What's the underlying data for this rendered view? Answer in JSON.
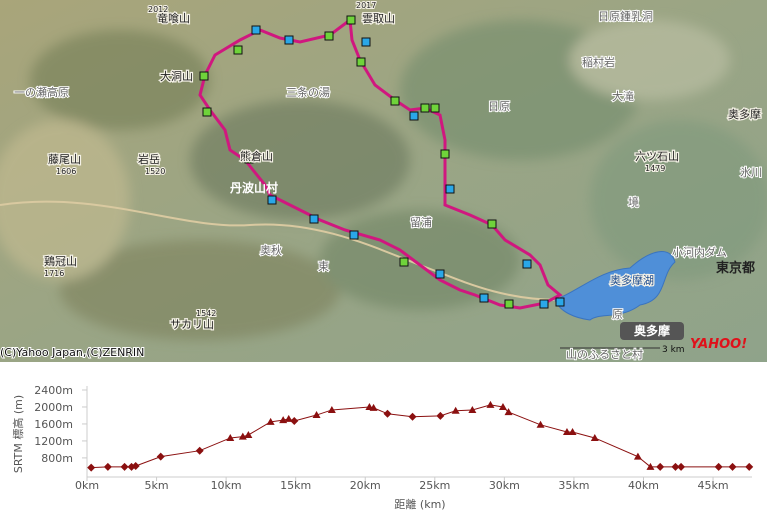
{
  "map": {
    "labels": [
      "竜喰山",
      "2012",
      "雲取山",
      "2017",
      "日原鍾乳洞",
      "稲村岩",
      "大洞山",
      "一の瀬高原",
      "三条の湯",
      "日原",
      "大滝",
      "奥多摩",
      "藤尾山",
      "1606",
      "岩岳",
      "1520",
      "六ツ石山",
      "1479",
      "氷川",
      "丹波山村",
      "熊倉山",
      "留浦",
      "境",
      "小河内ダム",
      "奥多摩湖",
      "東京都",
      "鶏冠山",
      "1716",
      "サカリ山",
      "1542",
      "奥秋",
      "東",
      "原",
      "奥多摩",
      "山のふるさと村"
    ],
    "copyright": "(C)Yahoo Japan,(C)ZENRIN",
    "scale": "3 km",
    "logo": "YAHOO!"
  },
  "chart_data": {
    "type": "line",
    "x_label": "距離 (km)",
    "y_label": "SRTM 標高 (m)",
    "xlim": [
      0,
      47.8
    ],
    "ylim": [
      350,
      2400
    ],
    "xticks": [
      {
        "value": 0,
        "label": "0km"
      },
      {
        "value": 5,
        "label": "5km"
      },
      {
        "value": 10,
        "label": "10km"
      },
      {
        "value": 15,
        "label": "15km"
      },
      {
        "value": 20,
        "label": "20km"
      },
      {
        "value": 25,
        "label": "25km"
      },
      {
        "value": 30,
        "label": "30km"
      },
      {
        "value": 35,
        "label": "35km"
      },
      {
        "value": 40,
        "label": "40km"
      },
      {
        "value": 45,
        "label": "45km"
      }
    ],
    "yticks": [
      {
        "value": 800,
        "label": "800m"
      },
      {
        "value": 1200,
        "label": "1200m"
      },
      {
        "value": 1600,
        "label": "1600m"
      },
      {
        "value": 2000,
        "label": "2000m"
      },
      {
        "value": 2400,
        "label": "2400m"
      }
    ],
    "series": [
      {
        "color": "#8b1010",
        "x": [
          0.3,
          1.5,
          2.7,
          3.2,
          3.5,
          5.3,
          8.1,
          10.3,
          11.2,
          11.6,
          13.2,
          14.1,
          14.5,
          14.9,
          16.5,
          17.6,
          20.3,
          20.6,
          21.6,
          23.4,
          25.4,
          26.5,
          27.7,
          29.0,
          29.9,
          30.3,
          32.6,
          34.5,
          34.9,
          36.5,
          39.6,
          40.5,
          41.2,
          42.3,
          42.7,
          45.4,
          46.4,
          47.6
        ],
        "values": [
          570,
          590,
          590,
          590,
          610,
          830,
          970,
          1270,
          1300,
          1340,
          1650,
          1690,
          1720,
          1670,
          1810,
          1930,
          2000,
          1980,
          1840,
          1770,
          1790,
          1910,
          1930,
          2050,
          2000,
          1880,
          1580,
          1410,
          1410,
          1270,
          830,
          590,
          590,
          590,
          590,
          590,
          590,
          590
        ],
        "markers": [
          "diamond",
          "diamond",
          "diamond",
          "diamond",
          "diamond",
          "diamond",
          "diamond",
          "triangle",
          "triangle",
          "triangle",
          "triangle",
          "triangle",
          "triangle",
          "diamond",
          "triangle",
          "triangle",
          "triangle",
          "triangle",
          "diamond",
          "diamond",
          "diamond",
          "triangle",
          "triangle",
          "triangle",
          "triangle",
          "triangle",
          "triangle",
          "triangle",
          "triangle",
          "triangle",
          "triangle",
          "triangle",
          "diamond",
          "diamond",
          "diamond",
          "diamond",
          "diamond",
          "diamond"
        ]
      }
    ]
  }
}
